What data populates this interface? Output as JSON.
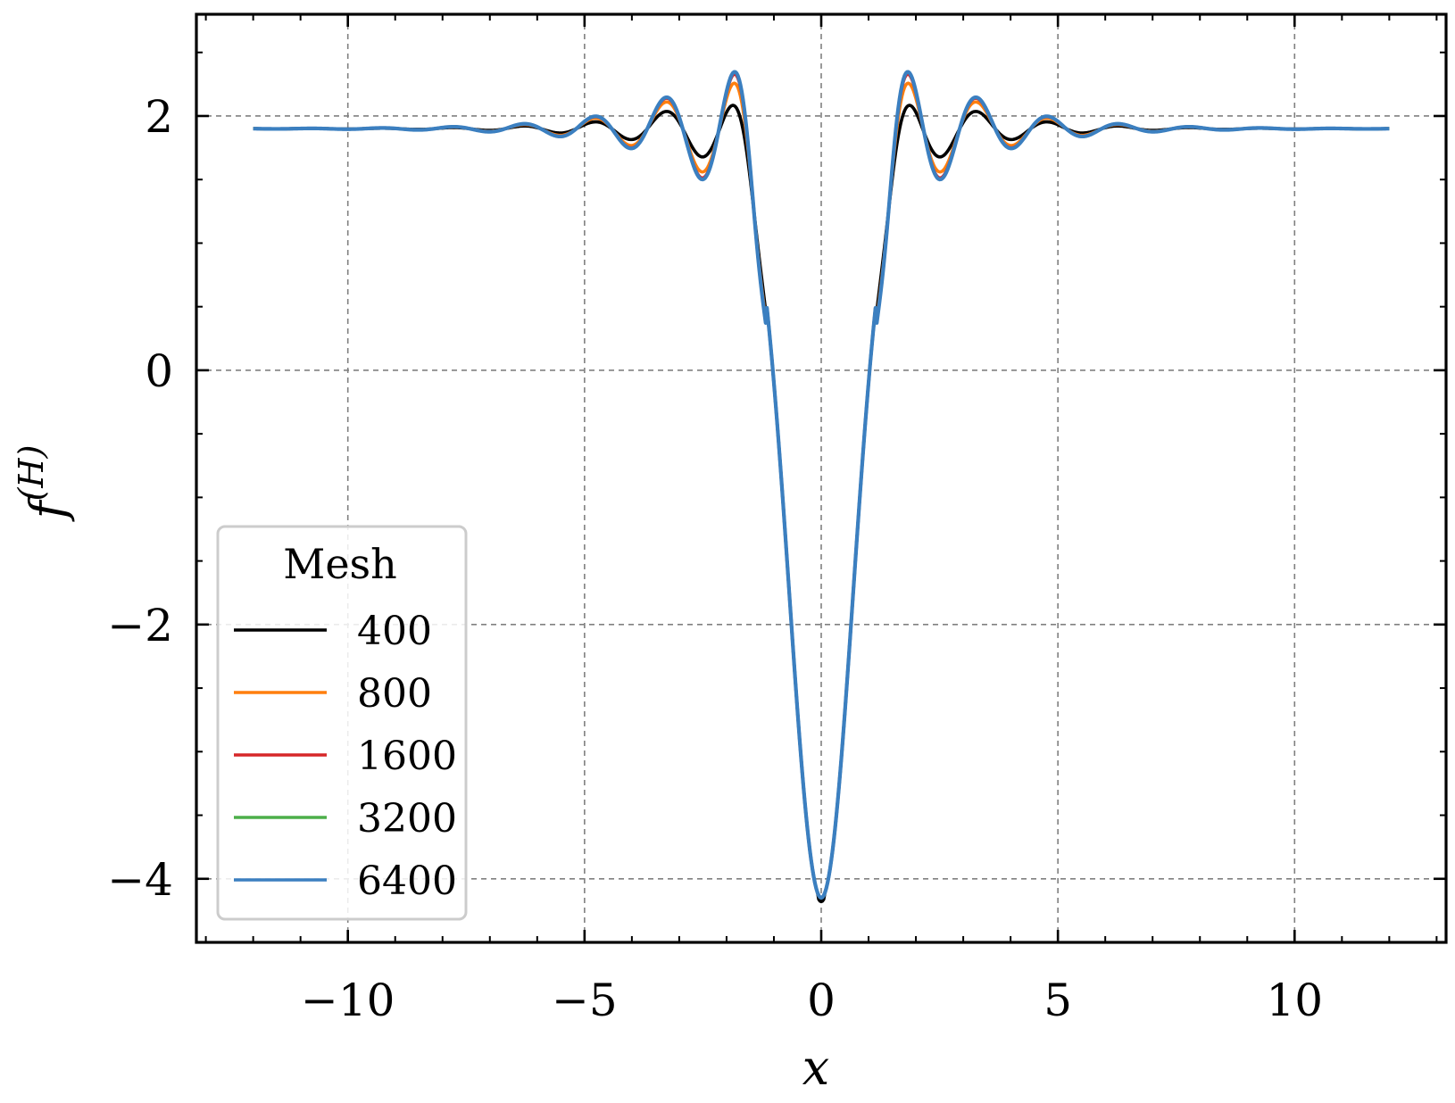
{
  "chart_data": {
    "type": "line",
    "title": "",
    "xlabel": "x",
    "ylabel": "f",
    "ylabel_superscript": "(H)",
    "xlim": [
      -13.2,
      13.2
    ],
    "ylim": [
      -4.5,
      2.8
    ],
    "x_ticks": [
      -10,
      -5,
      0,
      5,
      10
    ],
    "x_tick_labels": [
      "−10",
      "−5",
      "0",
      "5",
      "10"
    ],
    "y_ticks": [
      -4,
      -2,
      0,
      2
    ],
    "y_tick_labels": [
      "−4",
      "−2",
      "0",
      "2"
    ],
    "grid": true,
    "legend": {
      "title": "Mesh",
      "placement": "lower-left",
      "entries": [
        "400",
        "800",
        "1600",
        "3200",
        "6400"
      ]
    },
    "curve_model": {
      "baseline": 1.9,
      "center_value": -4.15,
      "note": "f(x) = baseline + (center_value - baseline)*sinc(x*pi/3.3)-like profile with decaying side oscillations; peaks near x=±1.8 reach ~2.47"
    },
    "key_points": [
      {
        "x": -12,
        "y": 1.9
      },
      {
        "x": -6,
        "y": 1.93
      },
      {
        "x": -4.6,
        "y": 1.99
      },
      {
        "x": -3.9,
        "y": 1.74
      },
      {
        "x": -3.2,
        "y": 2.14
      },
      {
        "x": -2.6,
        "y": 1.49
      },
      {
        "x": -1.8,
        "y": 2.47
      },
      {
        "x": -1.1,
        "y": 0.0
      },
      {
        "x": 0,
        "y": -4.15
      },
      {
        "x": 1.1,
        "y": 0.0
      },
      {
        "x": 1.8,
        "y": 2.47
      },
      {
        "x": 2.6,
        "y": 1.49
      },
      {
        "x": 3.2,
        "y": 2.14
      },
      {
        "x": 3.9,
        "y": 1.74
      },
      {
        "x": 4.6,
        "y": 1.99
      },
      {
        "x": 6,
        "y": 1.93
      },
      {
        "x": 12,
        "y": 1.9
      }
    ],
    "series": [
      {
        "name": "400",
        "color": "#000000",
        "damping": 0.55
      },
      {
        "name": "800",
        "color": "#ff7f0e",
        "damping": 0.85
      },
      {
        "name": "1600",
        "color": "#d62728",
        "damping": 0.97
      },
      {
        "name": "3200",
        "color": "#4daf4a",
        "damping": 1.0
      },
      {
        "name": "6400",
        "color": "#3b7fc0",
        "damping": 1.0
      }
    ]
  }
}
